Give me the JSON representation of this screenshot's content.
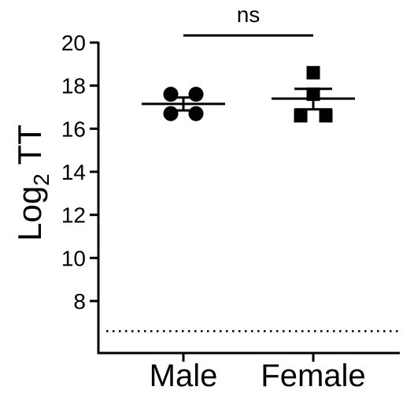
{
  "chart_data": {
    "type": "scatter",
    "ylabel_main": "Log",
    "ylabel_sub": "2",
    "ylabel_tail": " TT",
    "categories": [
      "Male",
      "Female"
    ],
    "y_ticks": [
      "8",
      "10",
      "12",
      "14",
      "16",
      "18",
      "20"
    ],
    "ylim": [
      6.3,
      20
    ],
    "grid": false,
    "detection_limit": 6.6,
    "significance": {
      "label": "ns",
      "from": "Male",
      "to": "Female"
    },
    "series": [
      {
        "category": "Male",
        "marker": "circle",
        "points": [
          {
            "offset": -0.35,
            "y": 17.6
          },
          {
            "offset": 0.35,
            "y": 17.6
          },
          {
            "offset": -0.35,
            "y": 16.7
          },
          {
            "offset": 0.35,
            "y": 16.7
          }
        ],
        "mean": 17.15,
        "sem_low": 16.85,
        "sem_high": 17.45
      },
      {
        "category": "Female",
        "marker": "square",
        "points": [
          {
            "offset": 0.0,
            "y": 18.6
          },
          {
            "offset": 0.0,
            "y": 17.6
          },
          {
            "offset": -0.35,
            "y": 16.6
          },
          {
            "offset": 0.35,
            "y": 16.6
          }
        ],
        "mean": 17.4,
        "sem_low": 16.9,
        "sem_high": 17.85
      }
    ]
  }
}
